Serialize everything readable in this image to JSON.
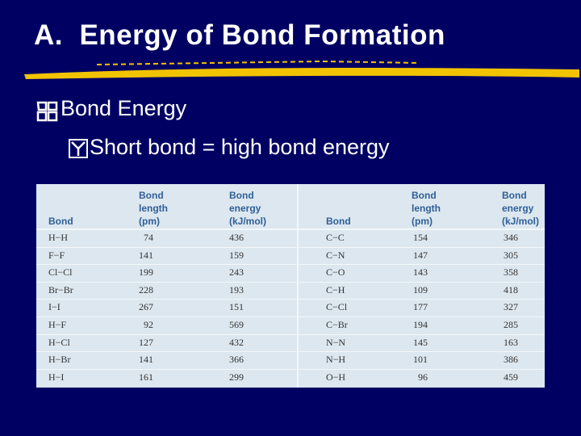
{
  "title": "A.  Energy of Bond Formation",
  "bullets": [
    "Bond Energy",
    "Short bond = high bond energy"
  ],
  "table": {
    "header": [
      "Bond",
      "Bond length (pm)",
      "Bond energy (kJ/mol)",
      "Bond",
      "Bond length (pm)",
      "Bond energy (kJ/mol)"
    ],
    "rows": [
      [
        "H−H",
        74,
        436,
        "C−C",
        154,
        346
      ],
      [
        "F−F",
        141,
        159,
        "C−N",
        147,
        305
      ],
      [
        "Cl−Cl",
        199,
        243,
        "C−O",
        143,
        358
      ],
      [
        "Br−Br",
        228,
        193,
        "C−H",
        109,
        418
      ],
      [
        "I−I",
        267,
        151,
        "C−Cl",
        177,
        327
      ],
      [
        "H−F",
        92,
        569,
        "C−Br",
        194,
        285
      ],
      [
        "H−Cl",
        127,
        432,
        "N−N",
        145,
        163
      ],
      [
        "H−Br",
        141,
        366,
        "N−H",
        101,
        386
      ],
      [
        "H−I",
        161,
        299,
        "O−H",
        96,
        459
      ]
    ]
  }
}
